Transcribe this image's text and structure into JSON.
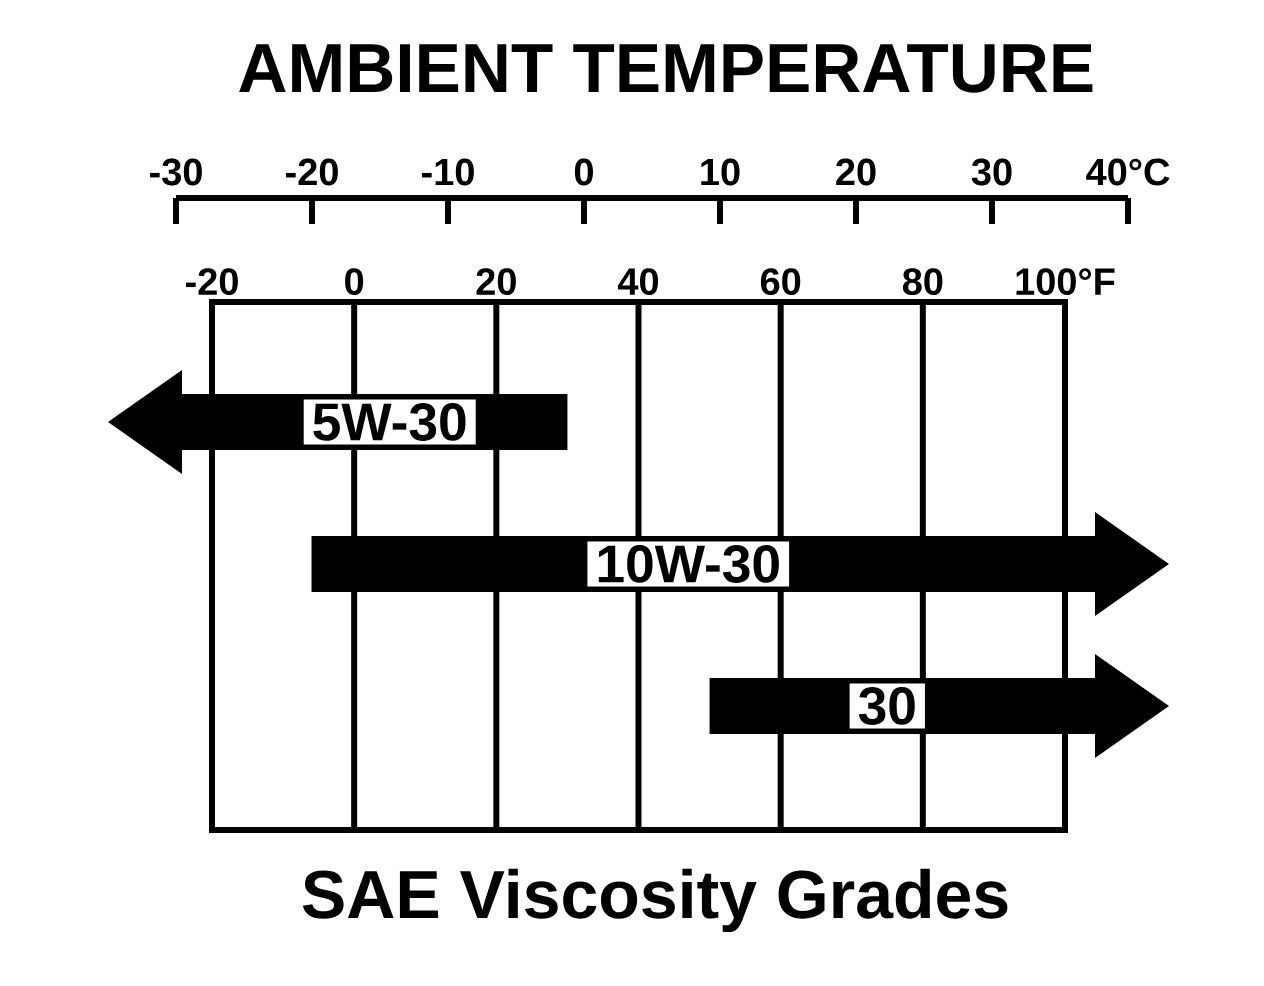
{
  "chart_data": {
    "type": "bar",
    "orientation": "horizontal",
    "title": "SAE Viscosity Grades",
    "x2label": "AMBIENT TEMPERATURE",
    "categories": [
      "5W-30",
      "10W-30",
      "30"
    ],
    "base": [
      -20,
      -6,
      50
    ],
    "values": [
      50,
      106,
      50
    ],
    "color": "#000000",
    "xlim": [
      -20,
      100
    ],
    "xticks": [
      -20,
      0,
      20,
      40,
      60,
      80,
      {
        "value": 100,
        "label": "100°F"
      }
    ],
    "x2lim": [
      -30,
      40
    ],
    "x2ticks": [
      -30,
      -20,
      -10,
      0,
      10,
      20,
      30,
      {
        "value": 40,
        "label": "40°C"
      }
    ],
    "grid": "x",
    "tick_labels": "x"
  }
}
